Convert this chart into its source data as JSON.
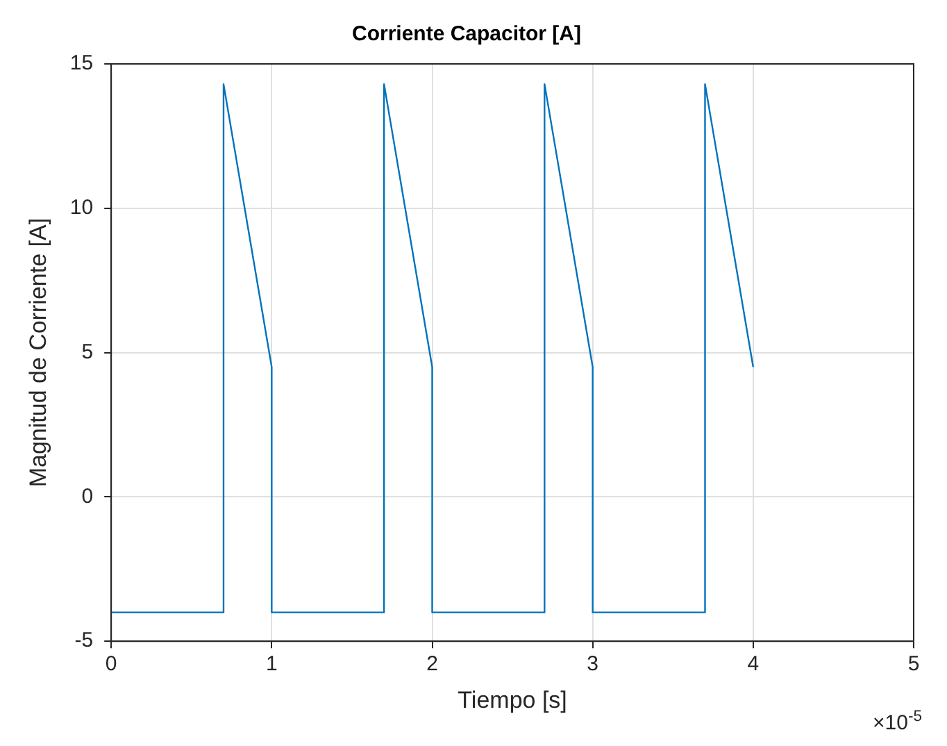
{
  "chart_data": {
    "type": "line",
    "title": "Corriente Capacitor [A]",
    "xlabel": "Tiempo [s]",
    "ylabel": "Magnitud de Corriente [A]",
    "annotations": [
      "×10$^{-5}$"
    ],
    "series": [
      {
        "color": "#0072bd",
        "x": [
          0,
          0.7,
          0.7,
          1.0,
          1.0,
          1.7,
          1.7,
          2.0,
          2.0,
          2.7,
          2.7,
          3.0,
          3.0,
          3.7,
          3.7,
          4.0
        ],
        "values": [
          -4,
          -4,
          14.3,
          4.5,
          -4,
          -4,
          14.3,
          4.5,
          -4,
          -4,
          14.3,
          4.5,
          -4,
          -4,
          14.3,
          4.5
        ]
      }
    ],
    "xlim": [
      0,
      5
    ],
    "xticks": [
      0,
      1,
      2,
      3,
      4,
      5
    ],
    "ylim": [
      -5,
      15
    ],
    "yticks": [
      -5,
      0,
      5,
      10,
      15
    ],
    "grid": true,
    "legend": false,
    "marker": "none",
    "line_style": "solid"
  }
}
